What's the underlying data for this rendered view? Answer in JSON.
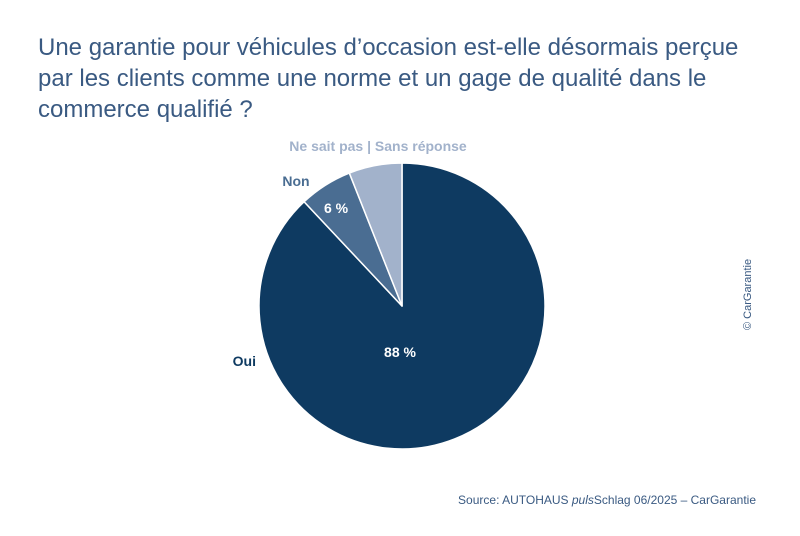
{
  "title_lines": [
    "Une garantie pour véhicules d’occasion est-elle désormais perçue",
    "par les clients comme une norme et un gage de qualité dans le",
    "commerce qualifié ?"
  ],
  "chart_data": {
    "type": "pie",
    "title": "Une garantie pour véhicules d’occasion est-elle désormais perçue par les clients comme une norme et un gage de qualité dans le commerce qualifié ?",
    "categories": [
      "Oui",
      "Non",
      "Ne sait pas | Sans réponse"
    ],
    "values": [
      88,
      6,
      6
    ],
    "value_labels": [
      "88 %",
      "6 %",
      ""
    ],
    "colors": [
      "#0e3a61",
      "#4a6d92",
      "#a2b2cb"
    ],
    "label_colors": [
      "#0e3a61",
      "#4a6d92",
      "#a2b2cb"
    ],
    "start": "12 o'clock",
    "direction": "clockwise"
  },
  "copyright": "© CarGarantie",
  "source": {
    "prefix": "Source: AUTOHAUS ",
    "italic": "puls",
    "suffix": "Schlag 06/2025 – CarGarantie"
  }
}
